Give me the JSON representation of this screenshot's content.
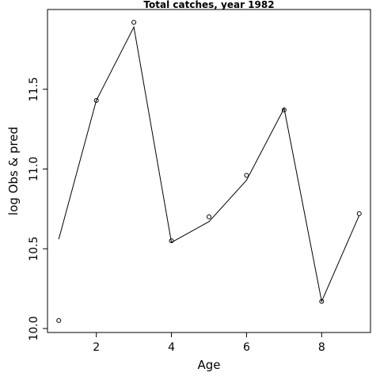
{
  "chart_data": {
    "type": "line",
    "title": "Total catches, year 1982",
    "xlabel": "Age",
    "ylabel": "log Obs & pred",
    "xlim": [
      0.7,
      9.3
    ],
    "ylim": [
      9.975,
      12.0
    ],
    "x_ticks": [
      2,
      4,
      6,
      8
    ],
    "x_tick_labels": [
      "2",
      "4",
      "6",
      "8"
    ],
    "y_ticks": [
      10.0,
      10.5,
      11.0,
      11.5
    ],
    "y_tick_labels": [
      "10.0",
      "10.5",
      "11.0",
      "11.5"
    ],
    "grid": false,
    "legend": "none",
    "series": [
      {
        "role": "predicted",
        "style": "line",
        "color": "#000000",
        "x": [
          1,
          2,
          3,
          4,
          5,
          6,
          7,
          8,
          9
        ],
        "y": [
          10.56,
          11.43,
          11.89,
          10.54,
          10.67,
          10.93,
          11.38,
          10.17,
          10.71
        ]
      },
      {
        "role": "observed",
        "style": "points",
        "marker": "open-circle",
        "color": "#000000",
        "x": [
          1,
          2,
          3,
          4,
          5,
          6,
          7,
          8,
          9
        ],
        "y": [
          10.05,
          11.43,
          11.92,
          10.55,
          10.7,
          10.96,
          11.37,
          10.17,
          10.72
        ]
      }
    ]
  }
}
